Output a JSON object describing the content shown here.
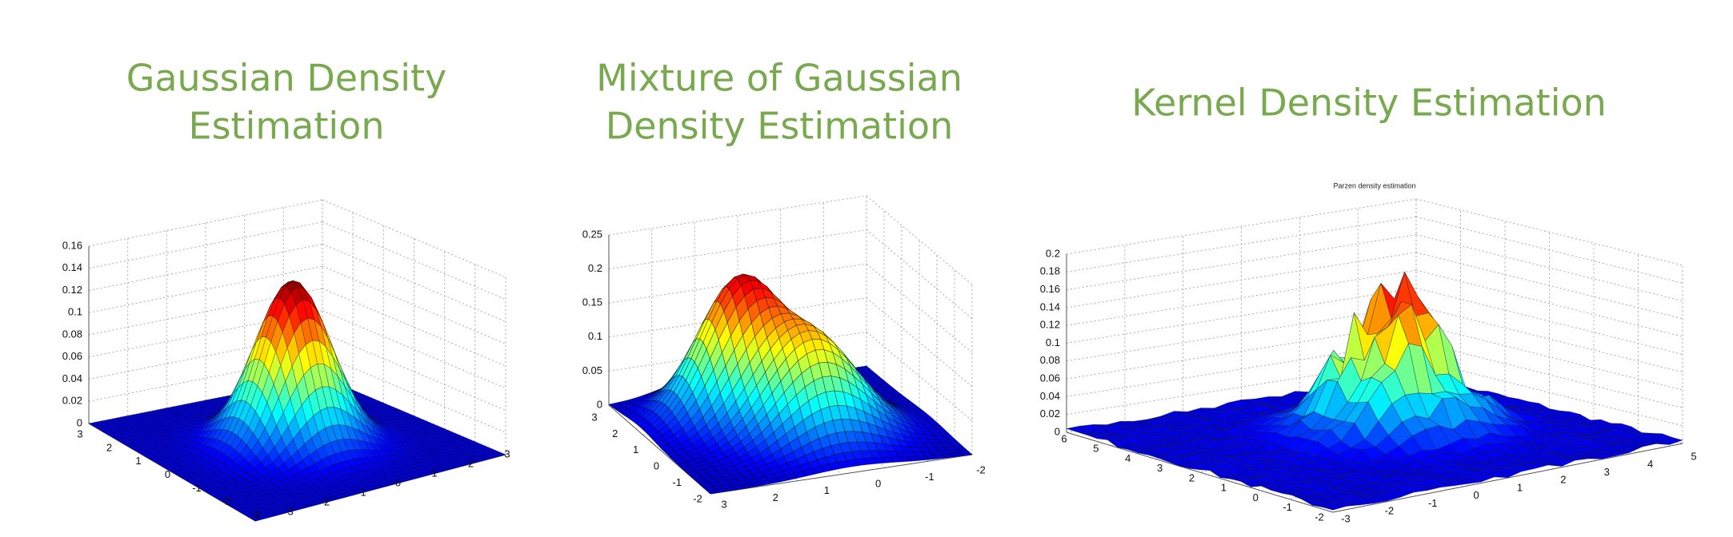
{
  "slide": {
    "panels": [
      {
        "title": [
          "Gaussian Density",
          "Estimation"
        ],
        "z_ticks": [
          0.16,
          0.14,
          0.12,
          0.1,
          0.08,
          0.06,
          0.04,
          0.02,
          0
        ],
        "y_ticks": [
          3,
          2,
          1,
          0,
          -1,
          -2,
          -3
        ],
        "x_ticks": [
          -3,
          -2,
          -1,
          0,
          1,
          2,
          3
        ]
      },
      {
        "title": [
          "Mixture of Gaussian",
          "Density Estimation"
        ],
        "z_ticks": [
          0.25,
          0.2,
          0.15,
          0.1,
          0.05,
          0
        ],
        "y_ticks": [
          3,
          2,
          1,
          0,
          -1,
          -2
        ],
        "x_ticks": [
          3,
          2,
          1,
          0,
          -1,
          -2
        ]
      },
      {
        "title": [
          "Kernel Density Estimation"
        ],
        "plot_title": "Parzen density estimation",
        "z_ticks": [
          0.2,
          0.18,
          0.16,
          0.14,
          0.12,
          0.1,
          0.08,
          0.06,
          0.04,
          0.02,
          0
        ],
        "y_ticks": [
          6,
          5,
          4,
          3,
          2,
          1,
          0,
          -1,
          -2
        ],
        "x_ticks": [
          -3,
          -2,
          -1,
          0,
          1,
          2,
          3,
          4,
          5
        ]
      }
    ]
  }
}
